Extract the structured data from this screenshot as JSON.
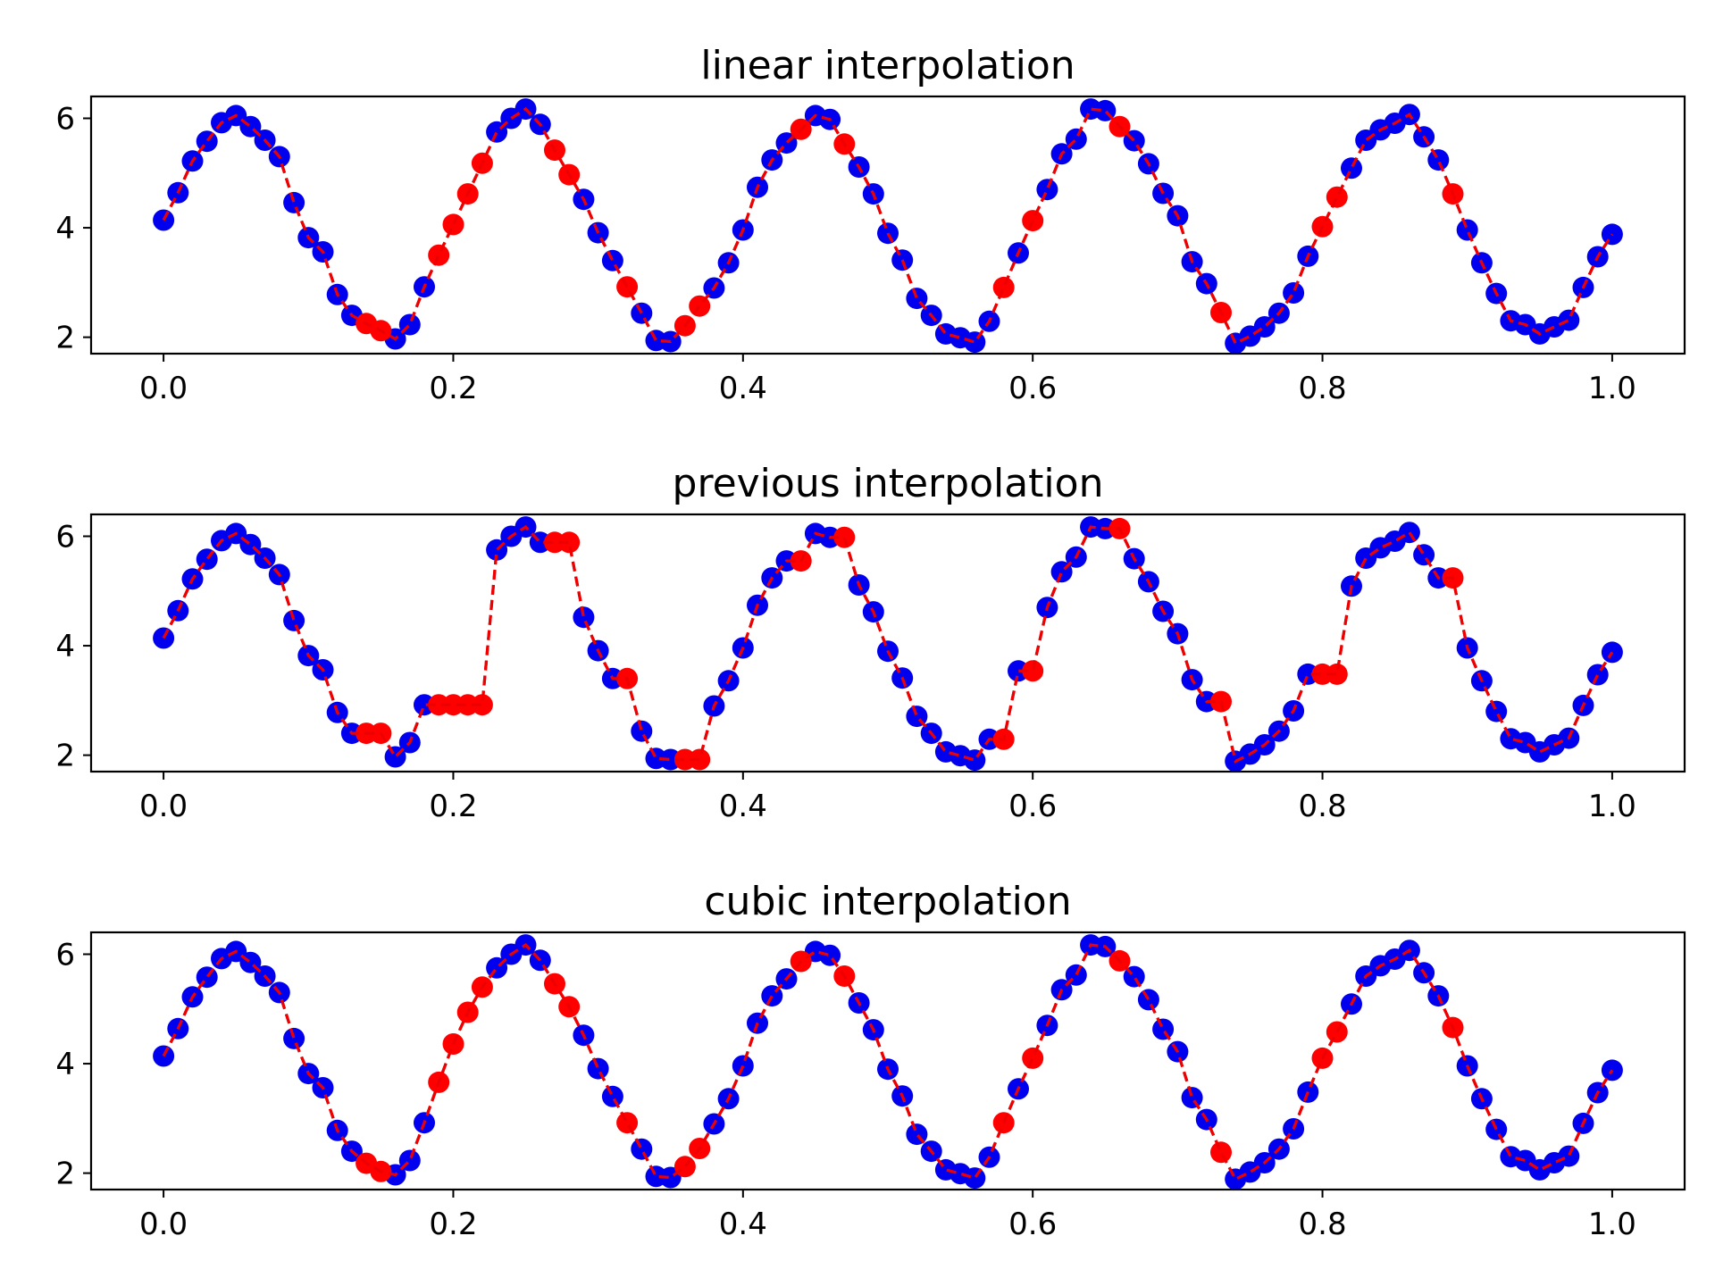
{
  "colors": {
    "known": "#0000ee",
    "interpolated": "#ff0000",
    "line": "#ee0000"
  },
  "chart_data": [
    {
      "type": "scatter",
      "title": "linear interpolation",
      "xlim": [
        -0.05,
        1.05
      ],
      "ylim": [
        1.7,
        6.4
      ],
      "xticks": [
        "0.0",
        "0.2",
        "0.4",
        "0.6",
        "0.8",
        "1.0"
      ],
      "yticks": [
        "2",
        "4",
        "6"
      ],
      "grid": false,
      "x": [
        0.0,
        0.01,
        0.02,
        0.03,
        0.04,
        0.05,
        0.06,
        0.07,
        0.08,
        0.09,
        0.1,
        0.11,
        0.12,
        0.13,
        0.14,
        0.15,
        0.16,
        0.17,
        0.18,
        0.19,
        0.2,
        0.21,
        0.22,
        0.23,
        0.24,
        0.25,
        0.26,
        0.27,
        0.28,
        0.29,
        0.3,
        0.31,
        0.32,
        0.33,
        0.34,
        0.35,
        0.36,
        0.37,
        0.38,
        0.39,
        0.4,
        0.41,
        0.42,
        0.43,
        0.44,
        0.45,
        0.46,
        0.47,
        0.48,
        0.49,
        0.5,
        0.51,
        0.52,
        0.53,
        0.54,
        0.55,
        0.56,
        0.57,
        0.58,
        0.59,
        0.6,
        0.61,
        0.62,
        0.63,
        0.64,
        0.65,
        0.66,
        0.67,
        0.68,
        0.69,
        0.7,
        0.71,
        0.72,
        0.73,
        0.74,
        0.75,
        0.76,
        0.77,
        0.78,
        0.79,
        0.8,
        0.81,
        0.82,
        0.83,
        0.84,
        0.85,
        0.86,
        0.87,
        0.88,
        0.89,
        0.9,
        0.91,
        0.92,
        0.93,
        0.94,
        0.95,
        0.96,
        0.97,
        0.98,
        0.99,
        1.0
      ],
      "y": [
        4.14,
        4.64,
        5.22,
        5.58,
        5.92,
        6.05,
        5.85,
        5.6,
        5.3,
        4.46,
        3.82,
        3.56,
        2.78,
        2.4,
        2.25,
        2.12,
        1.97,
        2.23,
        2.92,
        3.5,
        4.06,
        4.62,
        5.18,
        5.75,
        6.0,
        6.17,
        5.89,
        5.42,
        4.97,
        4.52,
        3.91,
        3.4,
        2.92,
        2.44,
        1.94,
        1.92,
        2.21,
        2.57,
        2.9,
        3.36,
        3.96,
        4.74,
        5.24,
        5.55,
        5.8,
        6.05,
        5.98,
        5.53,
        5.11,
        4.62,
        3.9,
        3.41,
        2.71,
        2.4,
        2.06,
        1.99,
        1.91,
        2.29,
        2.91,
        3.54,
        4.13,
        4.7,
        5.35,
        5.62,
        6.17,
        6.14,
        5.85,
        5.59,
        5.17,
        4.63,
        4.22,
        3.38,
        2.98,
        2.45,
        1.89,
        2.02,
        2.19,
        2.44,
        2.81,
        3.48,
        4.02,
        4.56,
        5.09,
        5.6,
        5.79,
        5.91,
        6.07,
        5.66,
        5.24,
        4.62,
        3.96,
        3.36,
        2.8,
        2.3,
        2.23,
        2.06,
        2.19,
        2.31,
        2.91,
        3.47,
        3.88
      ],
      "interpolated": [
        0,
        0,
        0,
        0,
        0,
        0,
        0,
        0,
        0,
        0,
        0,
        0,
        0,
        0,
        1,
        1,
        0,
        0,
        0,
        1,
        1,
        1,
        1,
        0,
        0,
        0,
        0,
        1,
        1,
        0,
        0,
        0,
        1,
        0,
        0,
        0,
        1,
        1,
        0,
        0,
        0,
        0,
        0,
        0,
        1,
        0,
        0,
        1,
        0,
        0,
        0,
        0,
        0,
        0,
        0,
        0,
        0,
        0,
        1,
        0,
        1,
        0,
        0,
        0,
        0,
        0,
        1,
        0,
        0,
        0,
        0,
        0,
        0,
        1,
        0,
        0,
        0,
        0,
        0,
        0,
        1,
        1,
        0,
        0,
        0,
        0,
        0,
        0,
        0,
        1,
        0,
        0,
        0,
        0,
        0,
        0,
        0,
        0,
        0,
        0,
        0
      ]
    },
    {
      "type": "scatter",
      "title": "previous interpolation",
      "xlim": [
        -0.05,
        1.05
      ],
      "ylim": [
        1.7,
        6.4
      ],
      "xticks": [
        "0.0",
        "0.2",
        "0.4",
        "0.6",
        "0.8",
        "1.0"
      ],
      "yticks": [
        "2",
        "4",
        "6"
      ],
      "grid": false,
      "x": [
        0.0,
        0.01,
        0.02,
        0.03,
        0.04,
        0.05,
        0.06,
        0.07,
        0.08,
        0.09,
        0.1,
        0.11,
        0.12,
        0.13,
        0.14,
        0.15,
        0.16,
        0.17,
        0.18,
        0.19,
        0.2,
        0.21,
        0.22,
        0.23,
        0.24,
        0.25,
        0.26,
        0.27,
        0.28,
        0.29,
        0.3,
        0.31,
        0.32,
        0.33,
        0.34,
        0.35,
        0.36,
        0.37,
        0.38,
        0.39,
        0.4,
        0.41,
        0.42,
        0.43,
        0.44,
        0.45,
        0.46,
        0.47,
        0.48,
        0.49,
        0.5,
        0.51,
        0.52,
        0.53,
        0.54,
        0.55,
        0.56,
        0.57,
        0.58,
        0.59,
        0.6,
        0.61,
        0.62,
        0.63,
        0.64,
        0.65,
        0.66,
        0.67,
        0.68,
        0.69,
        0.7,
        0.71,
        0.72,
        0.73,
        0.74,
        0.75,
        0.76,
        0.77,
        0.78,
        0.79,
        0.8,
        0.81,
        0.82,
        0.83,
        0.84,
        0.85,
        0.86,
        0.87,
        0.88,
        0.89,
        0.9,
        0.91,
        0.92,
        0.93,
        0.94,
        0.95,
        0.96,
        0.97,
        0.98,
        0.99,
        1.0
      ],
      "y": [
        4.14,
        4.64,
        5.22,
        5.58,
        5.92,
        6.05,
        5.85,
        5.6,
        5.3,
        4.46,
        3.82,
        3.56,
        2.78,
        2.4,
        2.4,
        2.4,
        1.97,
        2.23,
        2.92,
        2.92,
        2.92,
        2.92,
        2.92,
        5.75,
        6.0,
        6.17,
        5.89,
        5.89,
        5.89,
        4.52,
        3.91,
        3.4,
        3.4,
        2.44,
        1.94,
        1.92,
        1.92,
        1.92,
        2.9,
        3.36,
        3.96,
        4.74,
        5.24,
        5.55,
        5.55,
        6.05,
        5.98,
        5.98,
        5.11,
        4.62,
        3.9,
        3.41,
        2.71,
        2.4,
        2.06,
        1.99,
        1.91,
        2.29,
        2.29,
        3.54,
        3.54,
        4.7,
        5.35,
        5.62,
        6.17,
        6.14,
        6.14,
        5.59,
        5.17,
        4.63,
        4.22,
        3.38,
        2.98,
        2.98,
        1.89,
        2.02,
        2.19,
        2.44,
        2.81,
        3.48,
        3.48,
        3.48,
        5.09,
        5.6,
        5.79,
        5.91,
        6.07,
        5.66,
        5.24,
        5.24,
        3.96,
        3.36,
        2.8,
        2.3,
        2.23,
        2.06,
        2.19,
        2.31,
        2.91,
        3.47,
        3.88
      ],
      "interpolated": [
        0,
        0,
        0,
        0,
        0,
        0,
        0,
        0,
        0,
        0,
        0,
        0,
        0,
        0,
        1,
        1,
        0,
        0,
        0,
        1,
        1,
        1,
        1,
        0,
        0,
        0,
        0,
        1,
        1,
        0,
        0,
        0,
        1,
        0,
        0,
        0,
        1,
        1,
        0,
        0,
        0,
        0,
        0,
        0,
        1,
        0,
        0,
        1,
        0,
        0,
        0,
        0,
        0,
        0,
        0,
        0,
        0,
        0,
        1,
        0,
        1,
        0,
        0,
        0,
        0,
        0,
        1,
        0,
        0,
        0,
        0,
        0,
        0,
        1,
        0,
        0,
        0,
        0,
        0,
        0,
        1,
        1,
        0,
        0,
        0,
        0,
        0,
        0,
        0,
        1,
        0,
        0,
        0,
        0,
        0,
        0,
        0,
        0,
        0,
        0,
        0
      ]
    },
    {
      "type": "scatter",
      "title": "cubic interpolation",
      "xlim": [
        -0.05,
        1.05
      ],
      "ylim": [
        1.7,
        6.4
      ],
      "xticks": [
        "0.0",
        "0.2",
        "0.4",
        "0.6",
        "0.8",
        "1.0"
      ],
      "yticks": [
        "2",
        "4",
        "6"
      ],
      "grid": false,
      "x": [
        0.0,
        0.01,
        0.02,
        0.03,
        0.04,
        0.05,
        0.06,
        0.07,
        0.08,
        0.09,
        0.1,
        0.11,
        0.12,
        0.13,
        0.14,
        0.15,
        0.16,
        0.17,
        0.18,
        0.19,
        0.2,
        0.21,
        0.22,
        0.23,
        0.24,
        0.25,
        0.26,
        0.27,
        0.28,
        0.29,
        0.3,
        0.31,
        0.32,
        0.33,
        0.34,
        0.35,
        0.36,
        0.37,
        0.38,
        0.39,
        0.4,
        0.41,
        0.42,
        0.43,
        0.44,
        0.45,
        0.46,
        0.47,
        0.48,
        0.49,
        0.5,
        0.51,
        0.52,
        0.53,
        0.54,
        0.55,
        0.56,
        0.57,
        0.58,
        0.59,
        0.6,
        0.61,
        0.62,
        0.63,
        0.64,
        0.65,
        0.66,
        0.67,
        0.68,
        0.69,
        0.7,
        0.71,
        0.72,
        0.73,
        0.74,
        0.75,
        0.76,
        0.77,
        0.78,
        0.79,
        0.8,
        0.81,
        0.82,
        0.83,
        0.84,
        0.85,
        0.86,
        0.87,
        0.88,
        0.89,
        0.9,
        0.91,
        0.92,
        0.93,
        0.94,
        0.95,
        0.96,
        0.97,
        0.98,
        0.99,
        1.0
      ],
      "y": [
        4.14,
        4.64,
        5.22,
        5.58,
        5.92,
        6.05,
        5.85,
        5.6,
        5.3,
        4.46,
        3.82,
        3.56,
        2.78,
        2.4,
        2.18,
        2.03,
        1.97,
        2.23,
        2.92,
        3.66,
        4.36,
        4.94,
        5.4,
        5.75,
        6.0,
        6.17,
        5.89,
        5.46,
        5.04,
        4.52,
        3.91,
        3.4,
        2.92,
        2.44,
        1.94,
        1.92,
        2.12,
        2.45,
        2.9,
        3.36,
        3.96,
        4.74,
        5.24,
        5.55,
        5.87,
        6.05,
        5.98,
        5.6,
        5.11,
        4.62,
        3.9,
        3.41,
        2.71,
        2.4,
        2.06,
        1.99,
        1.91,
        2.29,
        2.92,
        3.54,
        4.1,
        4.7,
        5.35,
        5.62,
        6.17,
        6.14,
        5.88,
        5.59,
        5.17,
        4.63,
        4.22,
        3.38,
        2.98,
        2.38,
        1.89,
        2.02,
        2.19,
        2.44,
        2.81,
        3.48,
        4.1,
        4.58,
        5.09,
        5.6,
        5.79,
        5.91,
        6.07,
        5.66,
        5.24,
        4.66,
        3.96,
        3.36,
        2.8,
        2.3,
        2.23,
        2.06,
        2.19,
        2.31,
        2.91,
        3.47,
        3.88
      ],
      "interpolated": [
        0,
        0,
        0,
        0,
        0,
        0,
        0,
        0,
        0,
        0,
        0,
        0,
        0,
        0,
        1,
        1,
        0,
        0,
        0,
        1,
        1,
        1,
        1,
        0,
        0,
        0,
        0,
        1,
        1,
        0,
        0,
        0,
        1,
        0,
        0,
        0,
        1,
        1,
        0,
        0,
        0,
        0,
        0,
        0,
        1,
        0,
        0,
        1,
        0,
        0,
        0,
        0,
        0,
        0,
        0,
        0,
        0,
        0,
        1,
        0,
        1,
        0,
        0,
        0,
        0,
        0,
        1,
        0,
        0,
        0,
        0,
        0,
        0,
        1,
        0,
        0,
        0,
        0,
        0,
        0,
        1,
        1,
        0,
        0,
        0,
        0,
        0,
        0,
        0,
        1,
        0,
        0,
        0,
        0,
        0,
        0,
        0,
        0,
        0,
        0,
        0
      ]
    }
  ]
}
